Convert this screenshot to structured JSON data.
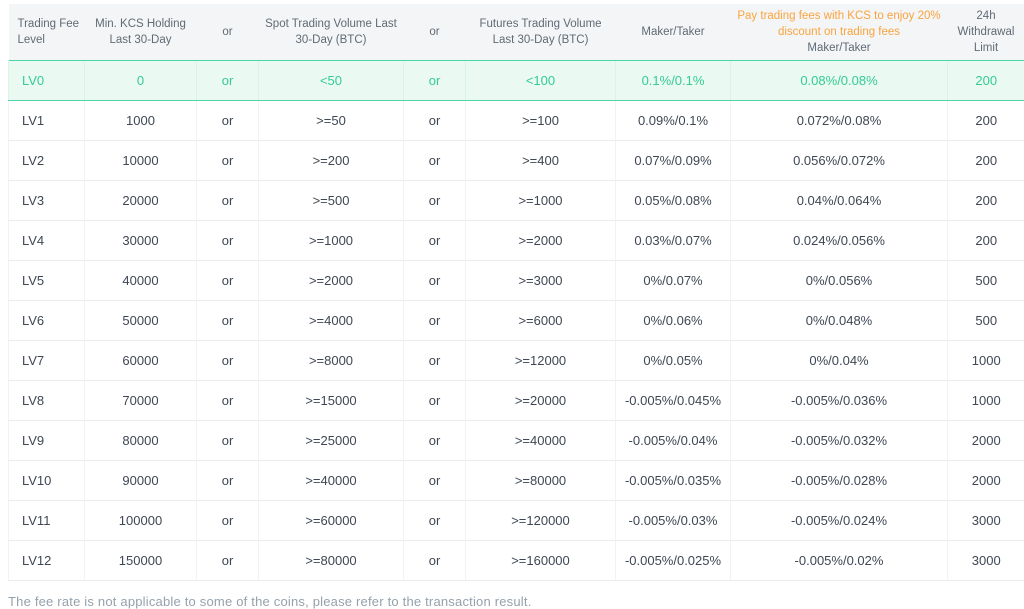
{
  "colors": {
    "accent_green_text": "#35cb93",
    "green_row_background": "#eafaf3",
    "green_row_border": "#4cd6a6",
    "orange_header_text": "#f9a43f",
    "header_background": "#f4f5f6",
    "header_text": "#5f6b76",
    "body_text": "#3e4753",
    "muted_text": "#95a1ab"
  },
  "table": {
    "header": {
      "level": "Trading Fee Level",
      "min_kcs": "Min. KCS Holding Last 30-Day",
      "or1": "or",
      "spot_volume": "Spot Trading Volume Last 30-Day (BTC)",
      "or2": "or",
      "futures_volume": "Futures Trading Volume Last 30-Day (BTC)",
      "maker_taker": "Maker/Taker",
      "kcs_discount_line1": "Pay trading fees with KCS to enjoy 20% discount on trading fees",
      "kcs_discount_line2": "Maker/Taker",
      "withdrawal": "24h Withdrawal Limit"
    },
    "rows": [
      {
        "level": "LV0",
        "min_kcs": "0",
        "or1": "or",
        "spot": "<50",
        "or2": "or",
        "futures": "<100",
        "maker_taker": "0.1%/0.1%",
        "kcs_maker_taker": "0.08%/0.08%",
        "withdrawal": "200",
        "highlight": true
      },
      {
        "level": "LV1",
        "min_kcs": "1000",
        "or1": "or",
        "spot": ">=50",
        "or2": "or",
        "futures": ">=100",
        "maker_taker": "0.09%/0.1%",
        "kcs_maker_taker": "0.072%/0.08%",
        "withdrawal": "200",
        "highlight": false
      },
      {
        "level": "LV2",
        "min_kcs": "10000",
        "or1": "or",
        "spot": ">=200",
        "or2": "or",
        "futures": ">=400",
        "maker_taker": "0.07%/0.09%",
        "kcs_maker_taker": "0.056%/0.072%",
        "withdrawal": "200",
        "highlight": false
      },
      {
        "level": "LV3",
        "min_kcs": "20000",
        "or1": "or",
        "spot": ">=500",
        "or2": "or",
        "futures": ">=1000",
        "maker_taker": "0.05%/0.08%",
        "kcs_maker_taker": "0.04%/0.064%",
        "withdrawal": "200",
        "highlight": false
      },
      {
        "level": "LV4",
        "min_kcs": "30000",
        "or1": "or",
        "spot": ">=1000",
        "or2": "or",
        "futures": ">=2000",
        "maker_taker": "0.03%/0.07%",
        "kcs_maker_taker": "0.024%/0.056%",
        "withdrawal": "200",
        "highlight": false
      },
      {
        "level": "LV5",
        "min_kcs": "40000",
        "or1": "or",
        "spot": ">=2000",
        "or2": "or",
        "futures": ">=3000",
        "maker_taker": "0%/0.07%",
        "kcs_maker_taker": "0%/0.056%",
        "withdrawal": "500",
        "highlight": false
      },
      {
        "level": "LV6",
        "min_kcs": "50000",
        "or1": "or",
        "spot": ">=4000",
        "or2": "or",
        "futures": ">=6000",
        "maker_taker": "0%/0.06%",
        "kcs_maker_taker": "0%/0.048%",
        "withdrawal": "500",
        "highlight": false
      },
      {
        "level": "LV7",
        "min_kcs": "60000",
        "or1": "or",
        "spot": ">=8000",
        "or2": "or",
        "futures": ">=12000",
        "maker_taker": "0%/0.05%",
        "kcs_maker_taker": "0%/0.04%",
        "withdrawal": "1000",
        "highlight": false
      },
      {
        "level": "LV8",
        "min_kcs": "70000",
        "or1": "or",
        "spot": ">=15000",
        "or2": "or",
        "futures": ">=20000",
        "maker_taker": "-0.005%/0.045%",
        "kcs_maker_taker": "-0.005%/0.036%",
        "withdrawal": "1000",
        "highlight": false
      },
      {
        "level": "LV9",
        "min_kcs": "80000",
        "or1": "or",
        "spot": ">=25000",
        "or2": "or",
        "futures": ">=40000",
        "maker_taker": "-0.005%/0.04%",
        "kcs_maker_taker": "-0.005%/0.032%",
        "withdrawal": "2000",
        "highlight": false
      },
      {
        "level": "LV10",
        "min_kcs": "90000",
        "or1": "or",
        "spot": ">=40000",
        "or2": "or",
        "futures": ">=80000",
        "maker_taker": "-0.005%/0.035%",
        "kcs_maker_taker": "-0.005%/0.028%",
        "withdrawal": "2000",
        "highlight": false
      },
      {
        "level": "LV11",
        "min_kcs": "100000",
        "or1": "or",
        "spot": ">=60000",
        "or2": "or",
        "futures": ">=120000",
        "maker_taker": "-0.005%/0.03%",
        "kcs_maker_taker": "-0.005%/0.024%",
        "withdrawal": "3000",
        "highlight": false
      },
      {
        "level": "LV12",
        "min_kcs": "150000",
        "or1": "or",
        "spot": ">=80000",
        "or2": "or",
        "futures": ">=160000",
        "maker_taker": "-0.005%/0.025%",
        "kcs_maker_taker": "-0.005%/0.02%",
        "withdrawal": "3000",
        "highlight": false
      }
    ]
  },
  "footnote": "The fee rate is not applicable to some of the coins, please refer to the transaction result."
}
